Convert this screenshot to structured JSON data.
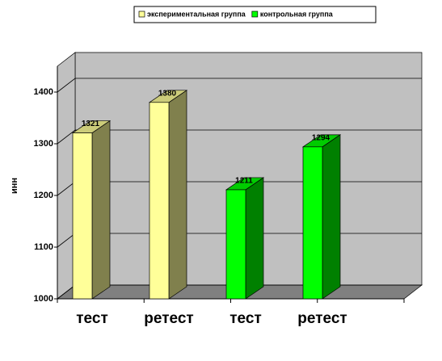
{
  "chart_data": {
    "type": "bar3d",
    "y_label": "инн",
    "categories": [
      "тест",
      "ретест",
      "тест",
      "ретест"
    ],
    "series": [
      {
        "name": "экспериментальная группа",
        "color": "#ffff99",
        "values": [
          1321,
          1380,
          null,
          null
        ]
      },
      {
        "name": "контрольная группа",
        "color": "#00ff00",
        "values": [
          null,
          null,
          1211,
          1294
        ]
      }
    ],
    "ylim": [
      1000,
      1450
    ],
    "yticks": [
      1000,
      1100,
      1200,
      1300,
      1400
    ],
    "grid": true
  }
}
